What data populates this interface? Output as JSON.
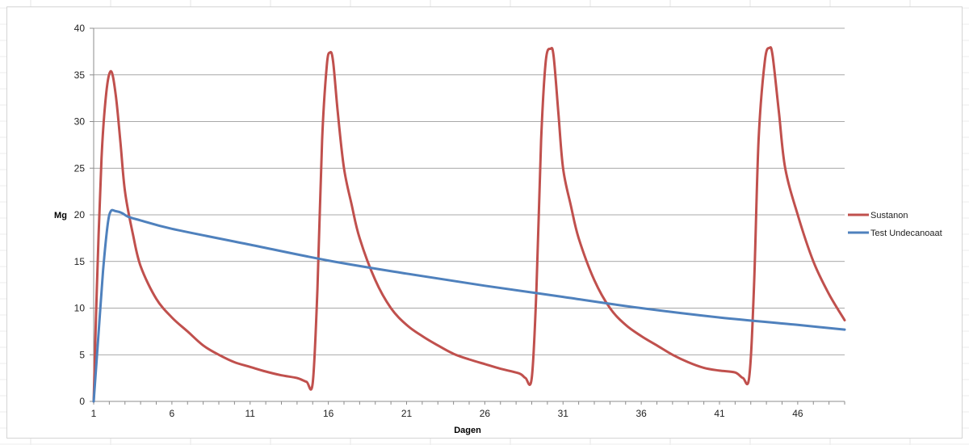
{
  "chart_data": {
    "type": "line",
    "title": "",
    "xlabel": "Dagen",
    "ylabel": "Mg",
    "xlim": [
      1,
      49
    ],
    "ylim": [
      0,
      40
    ],
    "x_ticks": [
      1,
      6,
      11,
      16,
      21,
      26,
      31,
      36,
      41,
      46
    ],
    "y_ticks": [
      0,
      5,
      10,
      15,
      20,
      25,
      30,
      35,
      40
    ],
    "grid": "horizontal",
    "legend_position": "right",
    "series": [
      {
        "name": "Sustanon",
        "color": "#c0504d",
        "points": [
          [
            1,
            0
          ],
          [
            1.2,
            12
          ],
          [
            1.5,
            26
          ],
          [
            1.8,
            33
          ],
          [
            2.1,
            35.4
          ],
          [
            2.4,
            33
          ],
          [
            2.7,
            28
          ],
          [
            3,
            22.5
          ],
          [
            3.5,
            18
          ],
          [
            4,
            14.5
          ],
          [
            5,
            11
          ],
          [
            6,
            9
          ],
          [
            7,
            7.5
          ],
          [
            8,
            6
          ],
          [
            9,
            5
          ],
          [
            10,
            4.2
          ],
          [
            11,
            3.7
          ],
          [
            12,
            3.2
          ],
          [
            13,
            2.8
          ],
          [
            14,
            2.5
          ],
          [
            14.6,
            2.1
          ],
          [
            15,
            2
          ],
          [
            15.3,
            12
          ],
          [
            15.6,
            28
          ],
          [
            15.9,
            36
          ],
          [
            16.1,
            37.4
          ],
          [
            16.3,
            36.5
          ],
          [
            16.6,
            31
          ],
          [
            17,
            25
          ],
          [
            17.5,
            21
          ],
          [
            18,
            17.5
          ],
          [
            19,
            13
          ],
          [
            20,
            10
          ],
          [
            21,
            8.2
          ],
          [
            22,
            7
          ],
          [
            23,
            6
          ],
          [
            24,
            5.1
          ],
          [
            25,
            4.5
          ],
          [
            26,
            4
          ],
          [
            27,
            3.5
          ],
          [
            28.2,
            3
          ],
          [
            28.6,
            2.5
          ],
          [
            29,
            2.5
          ],
          [
            29.3,
            12
          ],
          [
            29.6,
            28
          ],
          [
            29.9,
            36.5
          ],
          [
            30.2,
            37.8
          ],
          [
            30.4,
            37
          ],
          [
            30.7,
            31
          ],
          [
            31,
            25
          ],
          [
            31.5,
            21
          ],
          [
            32,
            17.5
          ],
          [
            33,
            13
          ],
          [
            34,
            10
          ],
          [
            35,
            8.2
          ],
          [
            36,
            7
          ],
          [
            37,
            6
          ],
          [
            38,
            5
          ],
          [
            39,
            4.2
          ],
          [
            40,
            3.6
          ],
          [
            41,
            3.3
          ],
          [
            42,
            3.1
          ],
          [
            42.5,
            2.5
          ],
          [
            42.9,
            2.6
          ],
          [
            43.2,
            12
          ],
          [
            43.5,
            28
          ],
          [
            43.9,
            36.5
          ],
          [
            44.2,
            37.9
          ],
          [
            44.4,
            37
          ],
          [
            44.8,
            31
          ],
          [
            45.2,
            25
          ],
          [
            46,
            20
          ],
          [
            47,
            15
          ],
          [
            48,
            11.5
          ],
          [
            49,
            8.7
          ]
        ]
      },
      {
        "name": "Test Undecanoaat",
        "color": "#4f81bd",
        "points": [
          [
            1,
            0
          ],
          [
            1.3,
            7
          ],
          [
            1.6,
            14
          ],
          [
            1.9,
            19
          ],
          [
            2.1,
            20.4
          ],
          [
            2.4,
            20.4
          ],
          [
            2.8,
            20.2
          ],
          [
            3.2,
            19.8
          ],
          [
            4,
            19.4
          ],
          [
            6,
            18.5
          ],
          [
            11,
            16.8
          ],
          [
            16,
            15.1
          ],
          [
            21,
            13.7
          ],
          [
            26,
            12.4
          ],
          [
            31,
            11.2
          ],
          [
            36,
            10
          ],
          [
            41,
            9
          ],
          [
            46,
            8.2
          ],
          [
            49,
            7.7
          ]
        ]
      }
    ]
  }
}
